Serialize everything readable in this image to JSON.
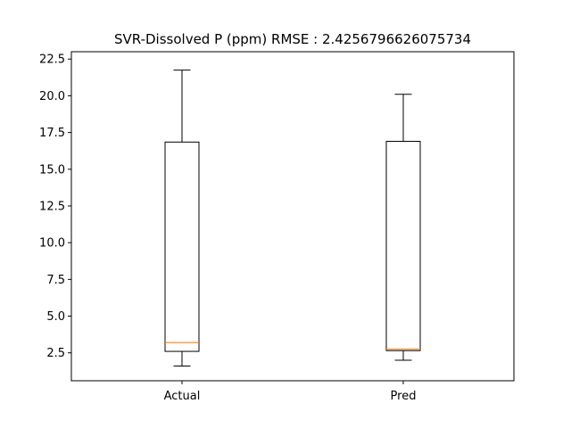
{
  "chart_data": {
    "type": "box",
    "title": "SVR-Dissolved P (ppm) RMSE : 2.4256796626075734",
    "xlabel": "",
    "ylabel": "",
    "categories": [
      "Actual",
      "Pred"
    ],
    "boxes": [
      {
        "label": "Actual",
        "whisker_low": 1.6,
        "q1": 2.6,
        "median": 3.2,
        "q3": 16.85,
        "whisker_high": 21.75
      },
      {
        "label": "Pred",
        "whisker_low": 2.0,
        "q1": 2.65,
        "median": 2.75,
        "q3": 16.9,
        "whisker_high": 20.1
      }
    ],
    "ylim": [
      0.6,
      23.0
    ],
    "yticks": [
      "2.5",
      "5.0",
      "7.5",
      "10.0",
      "12.5",
      "15.0",
      "17.5",
      "20.0",
      "22.5"
    ],
    "grid": false,
    "colors": {
      "box": "#000000",
      "median": "#ff7f0e",
      "background": "#ffffff"
    }
  }
}
